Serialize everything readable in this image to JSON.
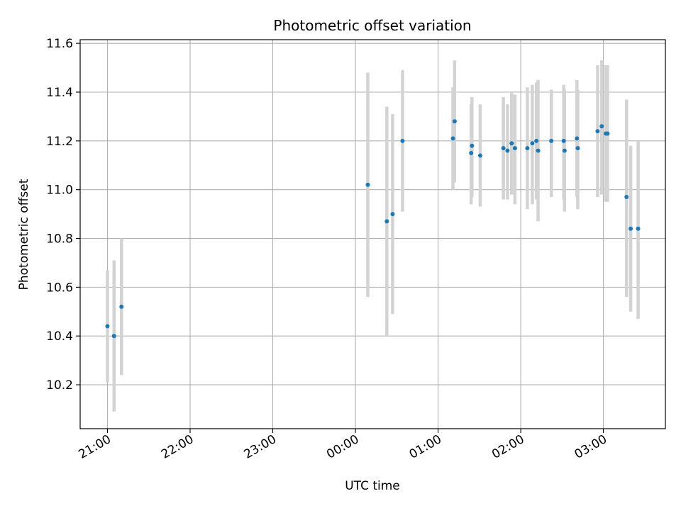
{
  "chart_data": {
    "type": "scatter",
    "title": "Photometric offset variation",
    "xlabel": "UTC time",
    "ylabel": "Photometric offset",
    "x_unit": "hours since 21:00 UTC",
    "xlim": [
      -0.33,
      6.75
    ],
    "ylim": [
      10.02,
      11.615
    ],
    "grid": true,
    "colors": {
      "marker": "#1f77b4",
      "errorbar": "#d3d3d3",
      "grid": "#b0b0b0",
      "axis": "#000000"
    },
    "x_ticks": [
      {
        "value": 0,
        "label": "21:00"
      },
      {
        "value": 1,
        "label": "22:00"
      },
      {
        "value": 2,
        "label": "23:00"
      },
      {
        "value": 3,
        "label": "00:00"
      },
      {
        "value": 4,
        "label": "01:00"
      },
      {
        "value": 5,
        "label": "02:00"
      },
      {
        "value": 6,
        "label": "03:00"
      }
    ],
    "y_ticks": [
      {
        "value": 10.2,
        "label": "10.2"
      },
      {
        "value": 10.4,
        "label": "10.4"
      },
      {
        "value": 10.6,
        "label": "10.6"
      },
      {
        "value": 10.8,
        "label": "10.8"
      },
      {
        "value": 11.0,
        "label": "11.0"
      },
      {
        "value": 11.2,
        "label": "11.2"
      },
      {
        "value": 11.4,
        "label": "11.4"
      },
      {
        "value": 11.6,
        "label": "11.6"
      }
    ],
    "points": [
      {
        "x": 0.0,
        "y": 10.44,
        "lo": 10.21,
        "hi": 10.67
      },
      {
        "x": 0.08,
        "y": 10.4,
        "lo": 10.09,
        "hi": 10.71
      },
      {
        "x": 0.17,
        "y": 10.52,
        "lo": 10.24,
        "hi": 10.8
      },
      {
        "x": 3.15,
        "y": 11.02,
        "lo": 10.56,
        "hi": 11.48
      },
      {
        "x": 3.38,
        "y": 10.87,
        "lo": 10.4,
        "hi": 11.34
      },
      {
        "x": 3.45,
        "y": 10.9,
        "lo": 10.49,
        "hi": 11.31
      },
      {
        "x": 3.57,
        "y": 11.2,
        "lo": 10.91,
        "hi": 11.49
      },
      {
        "x": 4.18,
        "y": 11.21,
        "lo": 11.0,
        "hi": 11.42
      },
      {
        "x": 4.2,
        "y": 11.28,
        "lo": 11.03,
        "hi": 11.53
      },
      {
        "x": 4.4,
        "y": 11.15,
        "lo": 10.94,
        "hi": 11.35
      },
      {
        "x": 4.41,
        "y": 11.18,
        "lo": 10.97,
        "hi": 11.38
      },
      {
        "x": 4.51,
        "y": 11.14,
        "lo": 10.93,
        "hi": 11.35
      },
      {
        "x": 4.79,
        "y": 11.17,
        "lo": 10.96,
        "hi": 11.38
      },
      {
        "x": 4.84,
        "y": 11.16,
        "lo": 10.96,
        "hi": 11.35
      },
      {
        "x": 4.89,
        "y": 11.19,
        "lo": 10.98,
        "hi": 11.4
      },
      {
        "x": 4.93,
        "y": 11.17,
        "lo": 10.94,
        "hi": 11.39
      },
      {
        "x": 5.08,
        "y": 11.17,
        "lo": 10.92,
        "hi": 11.42
      },
      {
        "x": 5.14,
        "y": 11.19,
        "lo": 10.94,
        "hi": 11.43
      },
      {
        "x": 5.19,
        "y": 11.2,
        "lo": 10.96,
        "hi": 11.44
      },
      {
        "x": 5.21,
        "y": 11.16,
        "lo": 10.87,
        "hi": 11.45
      },
      {
        "x": 5.37,
        "y": 11.2,
        "lo": 10.97,
        "hi": 11.41
      },
      {
        "x": 5.52,
        "y": 11.2,
        "lo": 10.96,
        "hi": 11.43
      },
      {
        "x": 5.53,
        "y": 11.16,
        "lo": 10.91,
        "hi": 11.41
      },
      {
        "x": 5.68,
        "y": 11.21,
        "lo": 10.97,
        "hi": 11.45
      },
      {
        "x": 5.69,
        "y": 11.17,
        "lo": 10.92,
        "hi": 11.41
      },
      {
        "x": 5.93,
        "y": 11.24,
        "lo": 10.97,
        "hi": 11.51
      },
      {
        "x": 5.98,
        "y": 11.26,
        "lo": 10.98,
        "hi": 11.53
      },
      {
        "x": 6.03,
        "y": 11.23,
        "lo": 10.95,
        "hi": 11.51
      },
      {
        "x": 6.05,
        "y": 11.23,
        "lo": 10.95,
        "hi": 11.51
      },
      {
        "x": 6.28,
        "y": 10.97,
        "lo": 10.56,
        "hi": 11.37
      },
      {
        "x": 6.33,
        "y": 10.84,
        "lo": 10.5,
        "hi": 11.18
      },
      {
        "x": 6.42,
        "y": 10.84,
        "lo": 10.47,
        "hi": 11.2
      }
    ]
  }
}
